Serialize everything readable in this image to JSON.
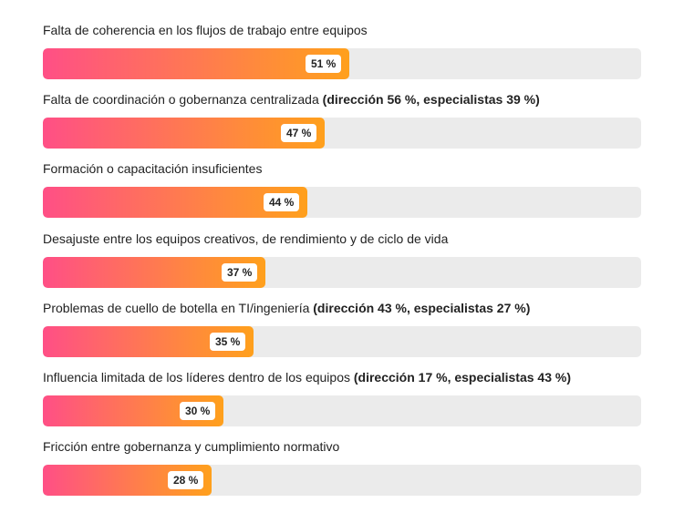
{
  "chart_data": {
    "type": "bar",
    "orientation": "horizontal",
    "title": "",
    "xlabel": "",
    "ylabel": "",
    "xlim": [
      0,
      100
    ],
    "grid": false,
    "legend": "none",
    "colors": {
      "gradient_start": "#ff4f86",
      "gradient_end": "#ffa01c",
      "track": "#ebebeb"
    },
    "categories": [
      "Falta de coherencia en los flujos de trabajo entre equipos",
      "Falta de coordinación o gobernanza centralizada",
      "Formación o capacitación insuficientes",
      "Desajuste entre los equipos creativos, de rendimiento y de ciclo de vida",
      "Problemas de cuello de botella en TI/ingeniería",
      "Influencia limitada de los líderes dentro de los equipos",
      "Fricción entre gobernanza y cumplimiento normativo"
    ],
    "annotations": [
      "",
      "(dirección 56 %, especialistas 39 %)",
      "",
      "",
      "(dirección 43 %, especialistas 27 %)",
      "(dirección 17 %, especialistas 43 %)",
      ""
    ],
    "values": [
      51,
      47,
      44,
      37,
      35,
      30,
      28
    ],
    "data_labels": [
      "51 %",
      "47 %",
      "44 %",
      "37 %",
      "35 %",
      "30 %",
      "28 %"
    ]
  }
}
